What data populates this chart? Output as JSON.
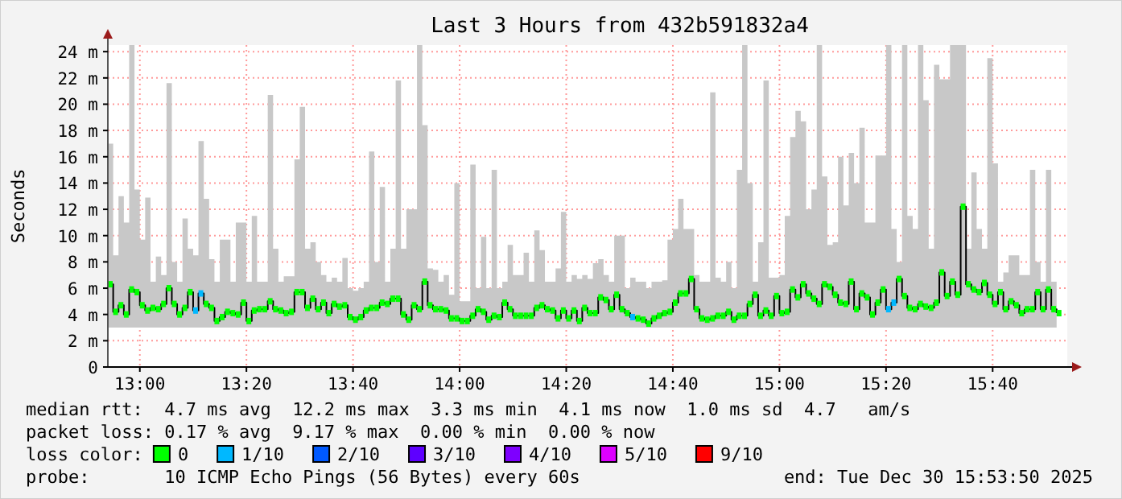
{
  "chart_data": {
    "type": "step",
    "title": "Last 3 Hours from 432b591832a4",
    "ylabel": "Seconds",
    "x": [
      "2025-12-30T12:54",
      "2025-12-30T12:55",
      "2025-12-30T12:56",
      "2025-12-30T12:57",
      "2025-12-30T12:58",
      "2025-12-30T12:59",
      "2025-12-30T13:00",
      "2025-12-30T13:01",
      "2025-12-30T13:02",
      "2025-12-30T13:03",
      "2025-12-30T13:04",
      "2025-12-30T13:05",
      "2025-12-30T13:06",
      "2025-12-30T13:07",
      "2025-12-30T13:08",
      "2025-12-30T13:09",
      "2025-12-30T13:10",
      "2025-12-30T13:11",
      "2025-12-30T13:12",
      "2025-12-30T13:13",
      "2025-12-30T13:14",
      "2025-12-30T13:15",
      "2025-12-30T13:16",
      "2025-12-30T13:17",
      "2025-12-30T13:18",
      "2025-12-30T13:19",
      "2025-12-30T13:20",
      "2025-12-30T13:21",
      "2025-12-30T13:22",
      "2025-12-30T13:23",
      "2025-12-30T13:24",
      "2025-12-30T13:25",
      "2025-12-30T13:26",
      "2025-12-30T13:27",
      "2025-12-30T13:28",
      "2025-12-30T13:29",
      "2025-12-30T13:30",
      "2025-12-30T13:31",
      "2025-12-30T13:32",
      "2025-12-30T13:33",
      "2025-12-30T13:34",
      "2025-12-30T13:35",
      "2025-12-30T13:36",
      "2025-12-30T13:37",
      "2025-12-30T13:38",
      "2025-12-30T13:39",
      "2025-12-30T13:40",
      "2025-12-30T13:41",
      "2025-12-30T13:42",
      "2025-12-30T13:43",
      "2025-12-30T13:44",
      "2025-12-30T13:45",
      "2025-12-30T13:46",
      "2025-12-30T13:47",
      "2025-12-30T13:48",
      "2025-12-30T13:49",
      "2025-12-30T13:50",
      "2025-12-30T13:51",
      "2025-12-30T13:52",
      "2025-12-30T13:53",
      "2025-12-30T13:54",
      "2025-12-30T13:55",
      "2025-12-30T13:56",
      "2025-12-30T13:57",
      "2025-12-30T13:58",
      "2025-12-30T13:59",
      "2025-12-30T14:00",
      "2025-12-30T14:01",
      "2025-12-30T14:02",
      "2025-12-30T14:03",
      "2025-12-30T14:04",
      "2025-12-30T14:05",
      "2025-12-30T14:06",
      "2025-12-30T14:07",
      "2025-12-30T14:08",
      "2025-12-30T14:09",
      "2025-12-30T14:10",
      "2025-12-30T14:11",
      "2025-12-30T14:12",
      "2025-12-30T14:13",
      "2025-12-30T14:14",
      "2025-12-30T14:15",
      "2025-12-30T14:16",
      "2025-12-30T14:17",
      "2025-12-30T14:18",
      "2025-12-30T14:19",
      "2025-12-30T14:20",
      "2025-12-30T14:21",
      "2025-12-30T14:22",
      "2025-12-30T14:23",
      "2025-12-30T14:24",
      "2025-12-30T14:25",
      "2025-12-30T14:26",
      "2025-12-30T14:27",
      "2025-12-30T14:28",
      "2025-12-30T14:29",
      "2025-12-30T14:30",
      "2025-12-30T14:31",
      "2025-12-30T14:32",
      "2025-12-30T14:33",
      "2025-12-30T14:34",
      "2025-12-30T14:35",
      "2025-12-30T14:36",
      "2025-12-30T14:37",
      "2025-12-30T14:38",
      "2025-12-30T14:39",
      "2025-12-30T14:40",
      "2025-12-30T14:41",
      "2025-12-30T14:42",
      "2025-12-30T14:43",
      "2025-12-30T14:44",
      "2025-12-30T14:45",
      "2025-12-30T14:46",
      "2025-12-30T14:47",
      "2025-12-30T14:48",
      "2025-12-30T14:49",
      "2025-12-30T14:50",
      "2025-12-30T14:51",
      "2025-12-30T14:52",
      "2025-12-30T14:53",
      "2025-12-30T14:54",
      "2025-12-30T14:55",
      "2025-12-30T14:56",
      "2025-12-30T14:57",
      "2025-12-30T14:58",
      "2025-12-30T14:59",
      "2025-12-30T15:00",
      "2025-12-30T15:01",
      "2025-12-30T15:02",
      "2025-12-30T15:03",
      "2025-12-30T15:04",
      "2025-12-30T15:05",
      "2025-12-30T15:06",
      "2025-12-30T15:07",
      "2025-12-30T15:08",
      "2025-12-30T15:09",
      "2025-12-30T15:10",
      "2025-12-30T15:11",
      "2025-12-30T15:12",
      "2025-12-30T15:13",
      "2025-12-30T15:14",
      "2025-12-30T15:15",
      "2025-12-30T15:16",
      "2025-12-30T15:17",
      "2025-12-30T15:18",
      "2025-12-30T15:19",
      "2025-12-30T15:20",
      "2025-12-30T15:21",
      "2025-12-30T15:22",
      "2025-12-30T15:23",
      "2025-12-30T15:24",
      "2025-12-30T15:25",
      "2025-12-30T15:26",
      "2025-12-30T15:27",
      "2025-12-30T15:28",
      "2025-12-30T15:29",
      "2025-12-30T15:30",
      "2025-12-30T15:31",
      "2025-12-30T15:32",
      "2025-12-30T15:33",
      "2025-12-30T15:34",
      "2025-12-30T15:35",
      "2025-12-30T15:36",
      "2025-12-30T15:37",
      "2025-12-30T15:38",
      "2025-12-30T15:39",
      "2025-12-30T15:40",
      "2025-12-30T15:41",
      "2025-12-30T15:42",
      "2025-12-30T15:43",
      "2025-12-30T15:44",
      "2025-12-30T15:45",
      "2025-12-30T15:46",
      "2025-12-30T15:47",
      "2025-12-30T15:48",
      "2025-12-30T15:49",
      "2025-12-30T15:50",
      "2025-12-30T15:51",
      "2025-12-30T15:52"
    ],
    "xlim": [
      "2025-12-30T12:54",
      "2025-12-30T15:54"
    ],
    "xticks": [
      {
        "value": "2025-12-30T13:00",
        "label": "13:00"
      },
      {
        "value": "2025-12-30T13:20",
        "label": "13:20"
      },
      {
        "value": "2025-12-30T13:40",
        "label": "13:40"
      },
      {
        "value": "2025-12-30T14:00",
        "label": "14:00"
      },
      {
        "value": "2025-12-30T14:20",
        "label": "14:20"
      },
      {
        "value": "2025-12-30T14:40",
        "label": "14:40"
      },
      {
        "value": "2025-12-30T15:00",
        "label": "15:00"
      },
      {
        "value": "2025-12-30T15:20",
        "label": "15:20"
      },
      {
        "value": "2025-12-30T15:40",
        "label": "15:40"
      }
    ],
    "ylim": [
      0,
      24.5
    ],
    "yticks": [
      0,
      {
        "value": 2,
        "label": "2 m"
      },
      {
        "value": 4,
        "label": "4 m"
      },
      {
        "value": 6,
        "label": "6 m"
      },
      {
        "value": 8,
        "label": "8 m"
      },
      {
        "value": 10,
        "label": "10 m"
      },
      {
        "value": 12,
        "label": "12 m"
      },
      {
        "value": 14,
        "label": "14 m"
      },
      {
        "value": 16,
        "label": "16 m"
      },
      {
        "value": 18,
        "label": "18 m"
      },
      {
        "value": 20,
        "label": "20 m"
      },
      {
        "value": 22,
        "label": "22 m"
      },
      {
        "value": 24,
        "label": "24 m"
      }
    ],
    "grid": true,
    "legend": "bottom",
    "legend_title": "loss color:",
    "annotations": [
      "median rtt:  4.7 ms avg  12.2 ms max  3.3 ms min  4.1 ms now  1.0 ms sd  4.7   am/s",
      "packet loss: 0.17 % avg  9.17 % max  0.00 % min  0.00 % now",
      "probe:       10 ICMP Echo Pings (56 Bytes) every 60s",
      "end: Tue Dec 30 15:53:50 2025"
    ],
    "series": [
      {
        "color": "#000000",
        "values": [
          6.3,
          4.2,
          4.7,
          4.0,
          5.9,
          5.7,
          4.7,
          4.3,
          4.5,
          4.4,
          4.8,
          6.0,
          4.8,
          4.0,
          4.5,
          5.7,
          4.3,
          5.6,
          4.8,
          4.5,
          3.5,
          3.8,
          4.2,
          4.1,
          4.0,
          4.9,
          3.5,
          4.3,
          4.4,
          4.4,
          5.0,
          4.4,
          4.3,
          4.1,
          4.2,
          5.7,
          5.7,
          4.5,
          5.2,
          4.4,
          4.9,
          4.1,
          4.8,
          4.6,
          4.7,
          3.8,
          3.6,
          3.8,
          4.3,
          4.5,
          4.5,
          4.9,
          4.8,
          5.2,
          5.2,
          4.0,
          3.6,
          4.7,
          4.4,
          6.5,
          4.7,
          4.4,
          4.4,
          4.3,
          3.7,
          3.7,
          3.5,
          3.5,
          3.9,
          4.4,
          4.2,
          3.6,
          3.9,
          3.8,
          4.9,
          4.4,
          3.9,
          3.9,
          3.9,
          3.9,
          4.5,
          4.7,
          4.4,
          4.3,
          3.7,
          4.3,
          3.7,
          4.3,
          3.5,
          4.5,
          4.1,
          4.1,
          5.3,
          5.1,
          4.4,
          5.5,
          4.4,
          4.1,
          3.8,
          3.7,
          3.6,
          3.3,
          3.7,
          3.9,
          4.1,
          4.2,
          4.9,
          5.6,
          5.6,
          6.7,
          4.4,
          3.7,
          3.6,
          3.7,
          3.9,
          3.9,
          4.2,
          3.6,
          3.9,
          3.9,
          4.8,
          5.5,
          3.9,
          4.3,
          3.9,
          5.4,
          4.1,
          4.2,
          5.9,
          5.3,
          6.3,
          5.6,
          5.2,
          4.8,
          6.3,
          6.1,
          5.5,
          4.9,
          4.8,
          6.5,
          4.4,
          5.6,
          5.3,
          4.0,
          4.9,
          5.9,
          4.4,
          4.9,
          6.7,
          5.4,
          4.5,
          4.4,
          4.8,
          4.6,
          4.5,
          4.9,
          7.2,
          5.4,
          6.5,
          5.5,
          12.2,
          6.3,
          5.9,
          5.7,
          6.4,
          5.5,
          4.8,
          5.7,
          4.4,
          5.0,
          4.7,
          4.1,
          4.4,
          4.4,
          5.7,
          4.4,
          5.9,
          4.4,
          4.1
        ],
        "lower": [
          3,
          3,
          3,
          3,
          3,
          3,
          3,
          3,
          3,
          3,
          3,
          3,
          3,
          3,
          3,
          3,
          3,
          3,
          3,
          3,
          3,
          3,
          3,
          3,
          3,
          3,
          3,
          3,
          3,
          3,
          3,
          3,
          3,
          3,
          3,
          3,
          3,
          3,
          3,
          3,
          3,
          3,
          3,
          3,
          3,
          3,
          3,
          3,
          3,
          3,
          3,
          3,
          3,
          3,
          3,
          3,
          3,
          3,
          3,
          3,
          3,
          3,
          3,
          3,
          3,
          3,
          3,
          3,
          3,
          3,
          3,
          3,
          3,
          3,
          3,
          3,
          3,
          3,
          3,
          3,
          3,
          3,
          3,
          3,
          3,
          3,
          3,
          3,
          3,
          3,
          3,
          3,
          3,
          3,
          3,
          3,
          3,
          3,
          3,
          3,
          3,
          3,
          3,
          3,
          3,
          3,
          3,
          3,
          3,
          3,
          3,
          3,
          3,
          3,
          3,
          3,
          3,
          3,
          3,
          3,
          3,
          3,
          3,
          3,
          3,
          3,
          3,
          3,
          3,
          3,
          3,
          3,
          3,
          3,
          3,
          3,
          3,
          3,
          3,
          3,
          3,
          3,
          3,
          3,
          3,
          3,
          3,
          3,
          3,
          3,
          3,
          3,
          3,
          3,
          3,
          3,
          3,
          3,
          3,
          3,
          3,
          3,
          3,
          3,
          3,
          3,
          3,
          3,
          3,
          3,
          3,
          3,
          3,
          3,
          3,
          3,
          3,
          3,
          3
        ],
        "upper": [
          17,
          8.5,
          13,
          11,
          24.5,
          13.5,
          9.7,
          12.9,
          6.5,
          8.4,
          7,
          21.6,
          8,
          6.5,
          11.3,
          9,
          8.5,
          17.2,
          12.8,
          8.2,
          6.5,
          9.7,
          9.7,
          6.5,
          11,
          11,
          6.5,
          11.5,
          6.5,
          6.5,
          20.7,
          9,
          6.5,
          6.9,
          6.9,
          15.8,
          19.8,
          9,
          9.5,
          8,
          7,
          6.5,
          6.8,
          6.5,
          8.3,
          6,
          5.8,
          6,
          6.5,
          16.4,
          8,
          13.7,
          6.5,
          9,
          21.8,
          9,
          12,
          12,
          24.5,
          18.4,
          7.5,
          7.4,
          6.5,
          7,
          5.5,
          14,
          5,
          5,
          15.4,
          6,
          9.9,
          6,
          15,
          6,
          6.5,
          9.3,
          7,
          7,
          8.7,
          6.5,
          10.4,
          8.9,
          6.5,
          6.5,
          7.5,
          11.8,
          6.5,
          7,
          6.7,
          7,
          6.7,
          7.9,
          8.2,
          7,
          6.5,
          10,
          10,
          6,
          6.8,
          6.5,
          6.5,
          6,
          6.5,
          6.5,
          6.6,
          9.7,
          10.5,
          12.8,
          10.5,
          10.5,
          7,
          6.5,
          6.5,
          20.9,
          6.8,
          6.5,
          8,
          6,
          15,
          24.5,
          14,
          6.5,
          9.5,
          21.8,
          6.8,
          6.8,
          7,
          11.5,
          17.5,
          19.5,
          18.7,
          12,
          13.5,
          24.5,
          14.5,
          9.3,
          9.5,
          16,
          12.3,
          16.3,
          14,
          18.2,
          11,
          11,
          16.1,
          16.1,
          24.5,
          10.5,
          8,
          24.5,
          11.5,
          10.5,
          24.5,
          20.3,
          9,
          23,
          21.9,
          21.9,
          24.5,
          24.5,
          24.5,
          9,
          14.8,
          10.5,
          9,
          23.5,
          15.5,
          6.5,
          7.2,
          8.5,
          8.5,
          7,
          7,
          15,
          8,
          6.5,
          15,
          6.5,
          6
        ]
      },
      {
        "name": "0",
        "type": "scatter",
        "color": "#00ff00",
        "marker": "square",
        "values": [
          6.3,
          4.2,
          4.7,
          4.0,
          5.9,
          5.7,
          4.7,
          4.3,
          4.5,
          4.4,
          4.8,
          6.0,
          4.8,
          4.0,
          4.5,
          5.7,
          null,
          null,
          4.8,
          4.5,
          3.5,
          3.8,
          4.2,
          4.1,
          4.0,
          4.9,
          3.5,
          4.3,
          4.4,
          4.4,
          5.0,
          4.4,
          4.3,
          4.1,
          4.2,
          5.7,
          5.7,
          4.5,
          5.2,
          4.4,
          4.9,
          4.1,
          4.8,
          4.6,
          4.7,
          3.8,
          3.6,
          3.8,
          4.3,
          4.5,
          4.5,
          4.9,
          4.8,
          5.2,
          5.2,
          4.0,
          3.6,
          4.7,
          4.4,
          6.5,
          4.7,
          4.4,
          4.4,
          4.3,
          3.7,
          3.7,
          3.5,
          3.5,
          3.9,
          4.4,
          4.2,
          3.6,
          3.9,
          3.8,
          4.9,
          4.4,
          3.9,
          3.9,
          3.9,
          3.9,
          4.5,
          4.7,
          4.4,
          4.3,
          3.7,
          4.3,
          3.7,
          4.3,
          3.5,
          4.5,
          4.1,
          4.1,
          5.3,
          5.1,
          4.4,
          5.5,
          4.4,
          4.1,
          null,
          3.7,
          3.6,
          3.3,
          3.7,
          3.9,
          4.1,
          4.2,
          4.9,
          5.6,
          5.6,
          6.7,
          4.4,
          3.7,
          3.6,
          3.7,
          3.9,
          3.9,
          4.2,
          3.6,
          3.9,
          3.9,
          4.8,
          5.5,
          3.9,
          4.3,
          3.9,
          5.4,
          4.1,
          4.2,
          5.9,
          5.3,
          6.3,
          5.6,
          5.2,
          4.8,
          6.3,
          6.1,
          5.5,
          4.9,
          4.8,
          6.5,
          4.4,
          5.6,
          5.3,
          4.0,
          4.9,
          5.9,
          null,
          null,
          6.7,
          5.4,
          4.5,
          4.4,
          4.8,
          4.6,
          4.5,
          4.9,
          7.2,
          5.4,
          6.5,
          5.5,
          12.2,
          6.3,
          5.9,
          5.7,
          6.4,
          5.5,
          4.8,
          5.7,
          4.4,
          5.0,
          4.7,
          4.1,
          4.4,
          4.4,
          5.7,
          4.4,
          5.9,
          4.4,
          4.1
        ]
      },
      {
        "name": "1/10",
        "type": "scatter",
        "color": "#00b8ff",
        "marker": "square",
        "x": [
          "2025-12-30T13:10",
          "2025-12-30T13:11",
          "2025-12-30T14:32",
          "2025-12-30T15:20",
          "2025-12-30T15:21"
        ],
        "values": [
          4.3,
          5.6,
          3.8,
          4.4,
          4.9
        ]
      },
      {
        "name": "2/10",
        "type": "scatter",
        "color": "#0059ff",
        "marker": "square",
        "values": [
          null,
          null,
          null,
          null,
          null,
          null,
          null,
          null,
          null,
          null,
          null,
          null,
          null,
          null,
          null,
          null,
          null,
          null,
          null,
          null,
          null,
          null,
          null,
          null,
          null,
          null,
          null,
          null,
          null,
          null,
          null,
          null,
          null,
          null,
          null,
          null,
          null,
          null,
          null,
          null,
          null,
          null,
          null,
          null,
          null,
          null,
          null,
          null,
          null,
          null,
          null,
          null,
          null,
          null,
          null,
          null,
          null,
          null,
          null,
          null,
          null,
          null,
          null,
          null,
          null,
          null,
          null,
          null,
          null,
          null,
          null,
          null,
          null,
          null,
          null,
          null,
          null,
          null,
          null,
          null,
          null,
          null,
          null,
          null,
          null,
          null,
          null,
          null,
          null,
          null,
          null,
          null,
          null,
          null,
          null,
          null,
          null,
          null,
          null,
          null,
          null,
          null,
          null,
          null,
          null,
          null,
          null,
          null,
          null,
          null,
          null,
          null,
          null,
          null,
          null,
          null,
          null,
          null,
          null,
          null,
          null,
          null,
          null,
          null,
          null,
          null,
          null,
          null,
          null,
          null,
          null,
          null,
          null,
          null,
          null,
          null,
          null,
          null,
          null,
          null,
          null,
          null,
          null,
          null,
          null,
          null,
          null,
          null,
          null,
          null,
          null,
          null,
          null,
          null,
          null,
          null,
          null,
          null,
          null,
          null,
          null,
          null,
          null,
          null,
          null,
          null,
          null,
          null,
          null,
          null,
          null,
          null,
          null,
          null,
          null,
          null,
          null,
          null,
          null
        ]
      },
      {
        "name": "3/10",
        "type": "scatter",
        "color": "#5e00ff",
        "marker": "square",
        "values": [
          null,
          null,
          null,
          null,
          null,
          null,
          null,
          null,
          null,
          null,
          null,
          null,
          null,
          null,
          null,
          null,
          null,
          null,
          null,
          null,
          null,
          null,
          null,
          null,
          null,
          null,
          null,
          null,
          null,
          null,
          null,
          null,
          null,
          null,
          null,
          null,
          null,
          null,
          null,
          null,
          null,
          null,
          null,
          null,
          null,
          null,
          null,
          null,
          null,
          null,
          null,
          null,
          null,
          null,
          null,
          null,
          null,
          null,
          null,
          null,
          null,
          null,
          null,
          null,
          null,
          null,
          null,
          null,
          null,
          null,
          null,
          null,
          null,
          null,
          null,
          null,
          null,
          null,
          null,
          null,
          null,
          null,
          null,
          null,
          null,
          null,
          null,
          null,
          null,
          null,
          null,
          null,
          null,
          null,
          null,
          null,
          null,
          null,
          null,
          null,
          null,
          null,
          null,
          null,
          null,
          null,
          null,
          null,
          null,
          null,
          null,
          null,
          null,
          null,
          null,
          null,
          null,
          null,
          null,
          null,
          null,
          null,
          null,
          null,
          null,
          null,
          null,
          null,
          null,
          null,
          null,
          null,
          null,
          null,
          null,
          null,
          null,
          null,
          null,
          null,
          null,
          null,
          null,
          null,
          null,
          null,
          null,
          null,
          null,
          null,
          null,
          null,
          null,
          null,
          null,
          null,
          null,
          null,
          null,
          null,
          null,
          null,
          null,
          null,
          null,
          null,
          null,
          null,
          null,
          null,
          null,
          null,
          null,
          null,
          null,
          null,
          null,
          null,
          null
        ]
      },
      {
        "name": "4/10",
        "type": "scatter",
        "color": "#7e00ff",
        "marker": "square",
        "values": [
          null,
          null,
          null,
          null,
          null,
          null,
          null,
          null,
          null,
          null,
          null,
          null,
          null,
          null,
          null,
          null,
          null,
          null,
          null,
          null,
          null,
          null,
          null,
          null,
          null,
          null,
          null,
          null,
          null,
          null,
          null,
          null,
          null,
          null,
          null,
          null,
          null,
          null,
          null,
          null,
          null,
          null,
          null,
          null,
          null,
          null,
          null,
          null,
          null,
          null,
          null,
          null,
          null,
          null,
          null,
          null,
          null,
          null,
          null,
          null,
          null,
          null,
          null,
          null,
          null,
          null,
          null,
          null,
          null,
          null,
          null,
          null,
          null,
          null,
          null,
          null,
          null,
          null,
          null,
          null,
          null,
          null,
          null,
          null,
          null,
          null,
          null,
          null,
          null,
          null,
          null,
          null,
          null,
          null,
          null,
          null,
          null,
          null,
          null,
          null,
          null,
          null,
          null,
          null,
          null,
          null,
          null,
          null,
          null,
          null,
          null,
          null,
          null,
          null,
          null,
          null,
          null,
          null,
          null,
          null,
          null,
          null,
          null,
          null,
          null,
          null,
          null,
          null,
          null,
          null,
          null,
          null,
          null,
          null,
          null,
          null,
          null,
          null,
          null,
          null,
          null,
          null,
          null,
          null,
          null,
          null,
          null,
          null,
          null,
          null,
          null,
          null,
          null,
          null,
          null,
          null,
          null,
          null,
          null,
          null,
          null,
          null,
          null,
          null,
          null,
          null,
          null,
          null,
          null,
          null,
          null,
          null,
          null,
          null,
          null,
          null,
          null,
          null,
          null
        ]
      },
      {
        "name": "5/10",
        "type": "scatter",
        "color": "#dd00ff",
        "marker": "square",
        "values": [
          null,
          null,
          null,
          null,
          null,
          null,
          null,
          null,
          null,
          null,
          null,
          null,
          null,
          null,
          null,
          null,
          null,
          null,
          null,
          null,
          null,
          null,
          null,
          null,
          null,
          null,
          null,
          null,
          null,
          null,
          null,
          null,
          null,
          null,
          null,
          null,
          null,
          null,
          null,
          null,
          null,
          null,
          null,
          null,
          null,
          null,
          null,
          null,
          null,
          null,
          null,
          null,
          null,
          null,
          null,
          null,
          null,
          null,
          null,
          null,
          null,
          null,
          null,
          null,
          null,
          null,
          null,
          null,
          null,
          null,
          null,
          null,
          null,
          null,
          null,
          null,
          null,
          null,
          null,
          null,
          null,
          null,
          null,
          null,
          null,
          null,
          null,
          null,
          null,
          null,
          null,
          null,
          null,
          null,
          null,
          null,
          null,
          null,
          null,
          null,
          null,
          null,
          null,
          null,
          null,
          null,
          null,
          null,
          null,
          null,
          null,
          null,
          null,
          null,
          null,
          null,
          null,
          null,
          null,
          null,
          null,
          null,
          null,
          null,
          null,
          null,
          null,
          null,
          null,
          null,
          null,
          null,
          null,
          null,
          null,
          null,
          null,
          null,
          null,
          null,
          null,
          null,
          null,
          null,
          null,
          null,
          null,
          null,
          null,
          null,
          null,
          null,
          null,
          null,
          null,
          null,
          null,
          null,
          null,
          null,
          null,
          null,
          null,
          null,
          null,
          null,
          null,
          null,
          null,
          null,
          null,
          null,
          null,
          null,
          null,
          null,
          null,
          null,
          null
        ]
      },
      {
        "name": "9/10",
        "type": "scatter",
        "color": "#ff0000",
        "marker": "square",
        "values": [
          null,
          null,
          null,
          null,
          null,
          null,
          null,
          null,
          null,
          null,
          null,
          null,
          null,
          null,
          null,
          null,
          null,
          null,
          null,
          null,
          null,
          null,
          null,
          null,
          null,
          null,
          null,
          null,
          null,
          null,
          null,
          null,
          null,
          null,
          null,
          null,
          null,
          null,
          null,
          null,
          null,
          null,
          null,
          null,
          null,
          null,
          null,
          null,
          null,
          null,
          null,
          null,
          null,
          null,
          null,
          null,
          null,
          null,
          null,
          null,
          null,
          null,
          null,
          null,
          null,
          null,
          null,
          null,
          null,
          null,
          null,
          null,
          null,
          null,
          null,
          null,
          null,
          null,
          null,
          null,
          null,
          null,
          null,
          null,
          null,
          null,
          null,
          null,
          null,
          null,
          null,
          null,
          null,
          null,
          null,
          null,
          null,
          null,
          null,
          null,
          null,
          null,
          null,
          null,
          null,
          null,
          null,
          null,
          null,
          null,
          null,
          null,
          null,
          null,
          null,
          null,
          null,
          null,
          null,
          null,
          null,
          null,
          null,
          null,
          null,
          null,
          null,
          null,
          null,
          null,
          null,
          null,
          null,
          null,
          null,
          null,
          null,
          null,
          null,
          null,
          null,
          null,
          null,
          null,
          null,
          null,
          null,
          null,
          null,
          null,
          null,
          null,
          null,
          null,
          null,
          null,
          null,
          null,
          null,
          null,
          null,
          null,
          null,
          null,
          null,
          null,
          null,
          null,
          null,
          null,
          null,
          null,
          null,
          null,
          null,
          null,
          null,
          null,
          null
        ]
      }
    ]
  }
}
